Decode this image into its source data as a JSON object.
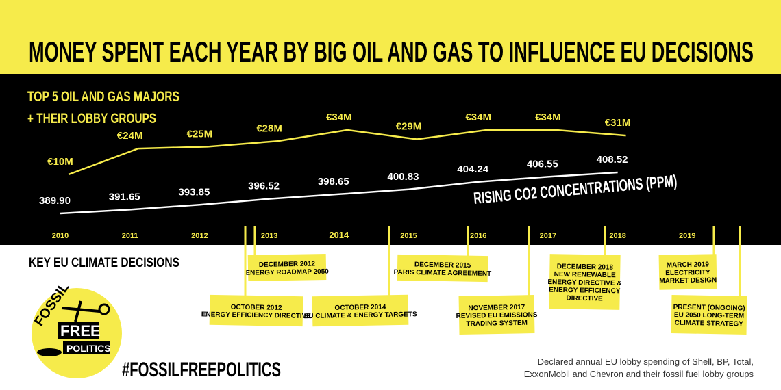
{
  "chart_data": {
    "type": "line",
    "title": "MONEY SPENT EACH YEAR BY BIG OIL AND GAS TO INFLUENCE EU DECISIONS",
    "subtitle": [
      "TOP 5 OIL AND GAS MAJORS",
      "+ THEIR LOBBY GROUPS"
    ],
    "categories": [
      "2010",
      "2011",
      "2012",
      "2013",
      "2014",
      "2015",
      "2016",
      "2017",
      "2018",
      "2019"
    ],
    "series": [
      {
        "color": "#f6eb4b",
        "values": [
          10,
          24,
          25,
          28,
          34,
          29,
          34,
          34,
          31,
          null
        ],
        "value_labels": [
          "€10M",
          "€24M",
          "€25M",
          "€28M",
          "€34M",
          "€29M",
          "€34M",
          "€34M",
          "€31M",
          null
        ]
      },
      {
        "name": "RISING CO2 CONCENTRATIONS (PPM)",
        "color": "#ffffff",
        "values": [
          389.9,
          391.65,
          393.85,
          396.52,
          398.65,
          400.83,
          404.24,
          406.55,
          408.52,
          null
        ],
        "value_labels": [
          "389.90",
          "391.65",
          "393.85",
          "396.52",
          "398.65",
          "400.83",
          "404.24",
          "406.55",
          "408.52",
          null
        ]
      }
    ],
    "decisions_title": "KEY EU CLIMATE DECISIONS",
    "decisions": [
      [
        "DECEMBER 2012",
        "ENERGY ROADMAP 2050"
      ],
      [
        "OCTOBER 2012",
        "ENERGY EFFICIENCY DIRECTIVE"
      ],
      [
        "OCTOBER 2014",
        "EU CLIMATE & ENERGY TARGETS"
      ],
      [
        "DECEMBER 2015",
        "PARIS CLIMATE AGREEMENT"
      ],
      [
        "NOVEMBER 2017",
        "REVISED EU EMISSIONS",
        "TRADING SYSTEM"
      ],
      [
        "DECEMBER 2018",
        "NEW RENEWABLE",
        "ENERGY DIRECTIVE &",
        "ENERGY EFFICIENCY",
        "DIRECTIVE"
      ],
      [
        "MARCH 2019",
        "ELECTRICITY",
        "MARKET DESIGN"
      ],
      [
        "PRESENT (ONGOING)",
        "EU 2050 LONG-TERM",
        "CLIMATE STRATEGY"
      ]
    ],
    "logo": [
      "FOSSIL",
      "FREE",
      "POLITICS"
    ],
    "hashtag": "#FOSSILFREEPOLITICS",
    "footnote": [
      "Declared annual EU lobby spending of Shell, BP, Total,",
      "ExxonMobil and Chevron and their fossil fuel lobby groups"
    ]
  }
}
